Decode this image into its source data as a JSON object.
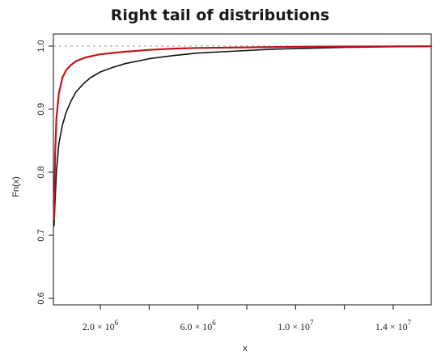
{
  "chart_data": {
    "type": "line",
    "title": "Right tail of distributions",
    "xlabel": "x",
    "ylabel": "Fn(x)",
    "xlim": [
      0,
      16000000
    ],
    "ylim": [
      0.6,
      1.0
    ],
    "grid": false,
    "legend": "none",
    "reference_line": {
      "y": 1.0,
      "style": "dashed",
      "color": "#9e9e9e"
    },
    "y_ticks": [
      {
        "value": 0.6,
        "label": "0.6"
      },
      {
        "value": 0.7,
        "label": "0.7"
      },
      {
        "value": 0.8,
        "label": "0.8"
      },
      {
        "value": 0.9,
        "label": "0.9"
      },
      {
        "value": 1.0,
        "label": "1.0"
      }
    ],
    "x_ticks": [
      {
        "value": 2000000,
        "label": "2.0 × 10",
        "exp": "6"
      },
      {
        "value": 4000000,
        "label": "",
        "exp": ""
      },
      {
        "value": 6000000,
        "label": "6.0 × 10",
        "exp": "6"
      },
      {
        "value": 8000000,
        "label": "",
        "exp": ""
      },
      {
        "value": 10000000,
        "label": "1.0 × 10",
        "exp": "7"
      },
      {
        "value": 12000000,
        "label": "",
        "exp": ""
      },
      {
        "value": 14000000,
        "label": "1.4 × 10",
        "exp": "7"
      }
    ],
    "series": [
      {
        "color": "#111111",
        "points": [
          [
            100000,
            0.715
          ],
          [
            200000,
            0.8
          ],
          [
            300000,
            0.845
          ],
          [
            450000,
            0.875
          ],
          [
            600000,
            0.895
          ],
          [
            800000,
            0.913
          ],
          [
            1000000,
            0.927
          ],
          [
            1300000,
            0.94
          ],
          [
            1600000,
            0.95
          ],
          [
            2000000,
            0.959
          ],
          [
            2500000,
            0.966
          ],
          [
            3000000,
            0.972
          ],
          [
            4000000,
            0.98
          ],
          [
            5000000,
            0.985
          ],
          [
            6000000,
            0.989
          ],
          [
            7000000,
            0.991
          ],
          [
            8000000,
            0.993
          ],
          [
            9000000,
            0.995
          ],
          [
            10000000,
            0.996
          ],
          [
            12000000,
            0.998
          ],
          [
            14000000,
            0.999
          ],
          [
            16000000,
            0.9995
          ]
        ]
      },
      {
        "color": "#c0161b",
        "points": [
          [
            100000,
            0.725
          ],
          [
            150000,
            0.83
          ],
          [
            200000,
            0.885
          ],
          [
            300000,
            0.925
          ],
          [
            450000,
            0.95
          ],
          [
            600000,
            0.962
          ],
          [
            800000,
            0.97
          ],
          [
            1000000,
            0.976
          ],
          [
            1400000,
            0.982
          ],
          [
            2000000,
            0.987
          ],
          [
            3000000,
            0.991
          ],
          [
            4000000,
            0.994
          ],
          [
            5000000,
            0.996
          ],
          [
            6000000,
            0.997
          ],
          [
            8000000,
            0.998
          ],
          [
            10000000,
            0.999
          ],
          [
            12000000,
            0.9993
          ],
          [
            14000000,
            0.9996
          ],
          [
            16000000,
            0.9998
          ]
        ]
      }
    ]
  }
}
